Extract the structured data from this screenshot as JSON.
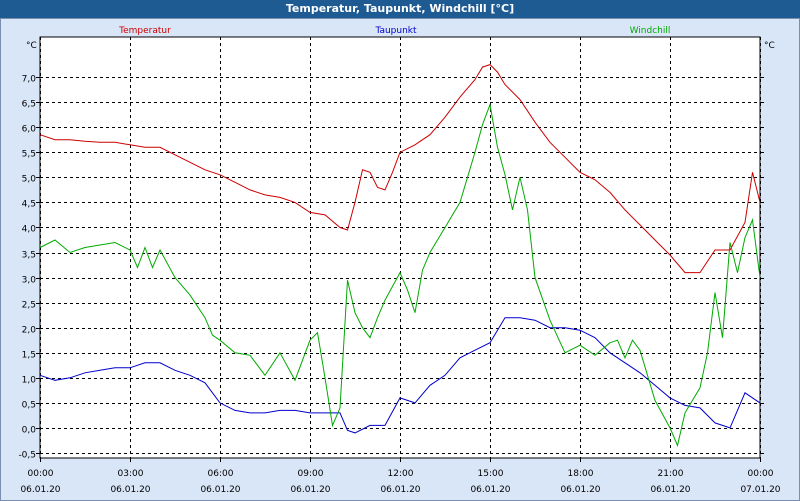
{
  "window": {
    "title": "Temperatur, Taupunkt, Windchill [°C]"
  },
  "chart_data": {
    "type": "line",
    "ylabel": "°C",
    "ylim": [
      -0.6,
      7.8
    ],
    "yticks": [
      "7,0",
      "6,5",
      "6,0",
      "5,5",
      "5,0",
      "4,5",
      "4,0",
      "3,5",
      "3,0",
      "2,5",
      "2,0",
      "1,5",
      "1,0",
      "0,5",
      "0,0",
      "-0,5"
    ],
    "ytick_values": [
      7.0,
      6.5,
      6.0,
      5.5,
      5.0,
      4.5,
      4.0,
      3.5,
      3.0,
      2.5,
      2.0,
      1.5,
      1.0,
      0.5,
      0.0,
      -0.5
    ],
    "x_range_hours": [
      0,
      24
    ],
    "xticks": [
      {
        "time": "00:00",
        "date": "06.01.20"
      },
      {
        "time": "03:00",
        "date": "06.01.20"
      },
      {
        "time": "06:00",
        "date": "06.01.20"
      },
      {
        "time": "09:00",
        "date": "06.01.20"
      },
      {
        "time": "12:00",
        "date": "06.01.20"
      },
      {
        "time": "15:00",
        "date": "06.01.20"
      },
      {
        "time": "18:00",
        "date": "06.01.20"
      },
      {
        "time": "21:00",
        "date": "06.01.20"
      },
      {
        "time": "00:00",
        "date": "07.01.20"
      }
    ],
    "grid": true,
    "series": [
      {
        "name": "Temperatur",
        "color": "#cc0000",
        "x": [
          0,
          0.5,
          1,
          1.5,
          2,
          2.5,
          3,
          3.5,
          4,
          4.5,
          5,
          5.5,
          6,
          6.5,
          7,
          7.5,
          8,
          8.5,
          9,
          9.5,
          10,
          10.25,
          10.5,
          10.75,
          11,
          11.25,
          11.5,
          11.75,
          12,
          12.5,
          13,
          13.5,
          14,
          14.5,
          14.75,
          15,
          15.25,
          15.5,
          16,
          16.5,
          17,
          17.5,
          18,
          18.5,
          19,
          19.5,
          20,
          20.5,
          21,
          21.5,
          22,
          22.5,
          23,
          23.5,
          23.75,
          24
        ],
        "values": [
          5.85,
          5.75,
          5.75,
          5.72,
          5.7,
          5.7,
          5.65,
          5.6,
          5.6,
          5.45,
          5.3,
          5.15,
          5.05,
          4.9,
          4.75,
          4.65,
          4.6,
          4.5,
          4.3,
          4.25,
          4.0,
          3.95,
          4.5,
          5.15,
          5.1,
          4.8,
          4.75,
          5.1,
          5.5,
          5.65,
          5.85,
          6.2,
          6.6,
          6.95,
          7.2,
          7.25,
          7.1,
          6.85,
          6.55,
          6.1,
          5.7,
          5.4,
          5.1,
          4.95,
          4.7,
          4.35,
          4.05,
          3.75,
          3.45,
          3.1,
          3.1,
          3.55,
          3.55,
          4.1,
          5.1,
          4.5
        ]
      },
      {
        "name": "Taupunkt",
        "color": "#0000cc",
        "x": [
          0,
          0.5,
          1,
          1.5,
          2,
          2.5,
          3,
          3.5,
          4,
          4.5,
          5,
          5.5,
          6,
          6.5,
          7,
          7.5,
          8,
          8.5,
          9,
          9.5,
          10,
          10.25,
          10.5,
          11,
          11.5,
          12,
          12.5,
          13,
          13.5,
          14,
          14.5,
          15,
          15.5,
          16,
          16.5,
          17,
          17.5,
          18,
          18.5,
          19,
          19.5,
          20,
          20.5,
          21,
          21.5,
          22,
          22.5,
          23,
          23.5,
          24
        ],
        "values": [
          1.05,
          0.95,
          1.0,
          1.1,
          1.15,
          1.2,
          1.2,
          1.3,
          1.3,
          1.15,
          1.05,
          0.9,
          0.5,
          0.35,
          0.3,
          0.3,
          0.35,
          0.35,
          0.3,
          0.3,
          0.3,
          -0.05,
          -0.1,
          0.05,
          0.05,
          0.6,
          0.5,
          0.85,
          1.05,
          1.4,
          1.55,
          1.7,
          2.2,
          2.2,
          2.15,
          2.0,
          2.0,
          1.95,
          1.8,
          1.5,
          1.3,
          1.1,
          0.85,
          0.6,
          0.45,
          0.4,
          0.1,
          0.0,
          0.7,
          0.5
        ]
      },
      {
        "name": "Windchill",
        "color": "#00aa00",
        "x": [
          0,
          0.5,
          1,
          1.5,
          2,
          2.5,
          3,
          3.25,
          3.5,
          3.75,
          4,
          4.5,
          5,
          5.5,
          5.75,
          6,
          6.5,
          7,
          7.5,
          8,
          8.5,
          9,
          9.25,
          9.5,
          9.75,
          10,
          10.25,
          10.5,
          10.75,
          11,
          11.25,
          11.5,
          12,
          12.25,
          12.5,
          12.75,
          13,
          13.5,
          14,
          14.5,
          14.75,
          15,
          15.25,
          15.5,
          15.75,
          16,
          16.25,
          16.5,
          17,
          17.5,
          18,
          18.5,
          19,
          19.25,
          19.5,
          19.75,
          20,
          20.5,
          21,
          21.25,
          21.5,
          22,
          22.25,
          22.5,
          22.75,
          23,
          23.25,
          23.5,
          23.75,
          24
        ],
        "values": [
          3.6,
          3.75,
          3.5,
          3.6,
          3.65,
          3.7,
          3.55,
          3.2,
          3.6,
          3.2,
          3.55,
          3.0,
          2.65,
          2.2,
          1.85,
          1.75,
          1.5,
          1.45,
          1.05,
          1.5,
          0.95,
          1.75,
          1.9,
          1.0,
          0.05,
          0.4,
          2.95,
          2.3,
          2.0,
          1.8,
          2.2,
          2.55,
          3.1,
          2.75,
          2.3,
          3.15,
          3.5,
          4.0,
          4.5,
          5.5,
          6.05,
          6.45,
          5.6,
          5.05,
          4.35,
          5.0,
          4.35,
          3.0,
          2.15,
          1.5,
          1.65,
          1.45,
          1.7,
          1.75,
          1.4,
          1.75,
          1.55,
          0.55,
          0.0,
          -0.35,
          0.3,
          0.8,
          1.5,
          2.7,
          1.8,
          3.7,
          3.1,
          3.8,
          4.15,
          3.0
        ]
      }
    ]
  }
}
